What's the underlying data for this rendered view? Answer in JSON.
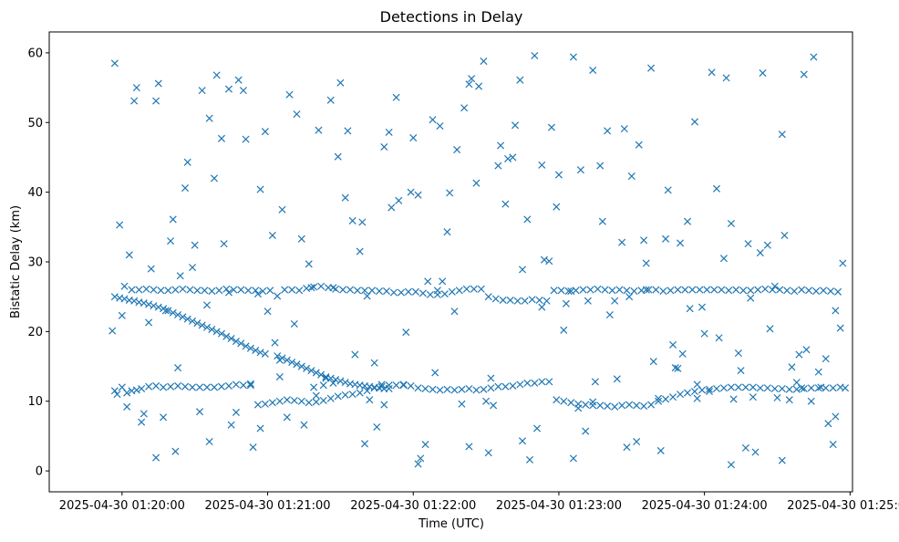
{
  "chart_data": {
    "type": "scatter",
    "title": "Detections in Delay",
    "xlabel": "Time (UTC)",
    "ylabel": "Bistatic Delay (km)",
    "x_unit": "seconds after 2025-04-30 01:19:30",
    "xlim": [
      0,
      331
    ],
    "ylim": [
      -3,
      63
    ],
    "x_ticks": [
      {
        "value": 30,
        "label": "2025-04-30 01:20:00"
      },
      {
        "value": 90,
        "label": "2025-04-30 01:21:00"
      },
      {
        "value": 150,
        "label": "2025-04-30 01:22:00"
      },
      {
        "value": 210,
        "label": "2025-04-30 01:23:00"
      },
      {
        "value": 270,
        "label": "2025-04-30 01:24:00"
      },
      {
        "value": 330,
        "label": "2025-04-30 01:25:00"
      }
    ],
    "y_ticks": [
      {
        "value": 0,
        "label": "0"
      },
      {
        "value": 10,
        "label": "10"
      },
      {
        "value": 20,
        "label": "20"
      },
      {
        "value": 30,
        "label": "30"
      },
      {
        "value": 40,
        "label": "40"
      },
      {
        "value": 50,
        "label": "50"
      },
      {
        "value": 60,
        "label": "60"
      }
    ],
    "marker": "x",
    "color": "#1f77b4",
    "series": [
      {
        "name": "detections",
        "x": [
          27,
          30,
          33,
          36,
          39,
          42,
          45,
          48,
          51,
          54,
          57,
          60,
          63,
          66,
          69,
          72,
          75,
          78,
          81,
          84,
          87,
          90,
          93,
          96,
          99,
          102,
          105,
          108,
          111,
          114,
          117,
          120,
          123,
          126,
          129,
          132,
          135,
          138,
          141,
          144,
          147,
          150,
          153,
          156,
          159,
          162,
          165,
          168,
          171,
          174,
          177,
          180,
          183,
          186,
          189,
          192,
          195,
          198,
          201,
          204,
          207,
          210,
          213,
          216,
          219,
          222,
          225,
          228,
          231,
          234,
          237,
          240,
          243,
          246,
          249,
          252,
          255,
          258,
          261,
          264,
          267,
          270,
          273,
          276,
          279,
          282,
          285,
          288,
          291,
          294,
          297,
          300,
          303,
          306,
          309,
          312,
          315,
          318,
          321,
          324,
          327,
          26,
          29,
          32,
          35,
          38,
          41,
          44,
          47,
          50,
          53,
          56,
          59,
          62,
          65,
          68,
          71,
          74,
          77,
          80,
          83,
          86,
          89,
          92,
          95,
          98,
          101,
          104,
          107,
          110,
          113,
          116,
          119,
          122,
          125,
          128,
          131,
          134,
          137,
          140,
          143,
          146,
          149,
          152,
          155,
          158,
          161,
          164,
          167,
          170,
          173,
          176,
          179,
          182,
          185,
          188,
          191,
          194,
          197,
          200,
          203,
          206,
          209,
          212,
          215,
          218,
          221,
          224,
          227,
          230,
          233,
          236,
          239,
          242,
          245,
          248,
          251,
          254,
          257,
          260,
          263,
          266,
          269,
          272,
          275,
          278,
          281,
          284,
          287,
          290,
          293,
          296,
          299,
          302,
          305,
          308,
          311,
          314,
          317,
          320,
          323,
          326,
          27,
          29,
          31,
          33,
          35,
          37,
          39,
          41,
          43,
          45,
          47,
          49,
          51,
          53,
          55,
          57,
          59,
          61,
          63,
          65,
          67,
          69,
          71,
          73,
          75,
          77,
          79,
          81,
          83,
          85,
          87,
          89,
          94,
          96,
          98,
          100,
          102,
          104,
          106,
          108,
          110,
          112,
          114,
          116,
          118,
          120,
          122,
          124,
          126,
          128,
          130,
          132,
          134,
          136,
          138,
          140,
          34,
          37,
          40,
          43,
          46,
          49,
          52,
          55,
          58,
          61,
          64,
          67,
          70,
          73,
          76,
          79,
          82,
          85,
          88,
          91,
          94,
          97,
          100,
          103,
          106,
          109,
          112,
          115,
          118,
          121,
          124,
          127,
          130,
          133,
          136,
          139,
          142,
          145,
          148,
          151,
          154,
          157,
          160,
          163,
          166,
          169,
          172,
          175,
          178,
          181,
          184,
          187,
          190,
          193,
          196,
          199,
          202,
          205,
          208,
          211,
          214,
          217,
          220,
          223,
          226,
          229,
          232,
          235,
          238,
          241,
          244,
          247,
          250,
          253,
          256,
          259,
          262,
          265,
          268,
          271,
          274,
          277,
          280,
          283,
          286,
          289,
          292,
          295,
          298,
          301,
          304,
          307,
          310,
          313,
          316,
          319,
          322,
          325,
          27,
          28,
          30,
          32,
          34,
          36,
          38,
          41,
          44,
          47,
          50,
          53,
          56,
          59,
          62,
          65,
          68,
          71,
          74,
          77,
          80,
          83,
          86,
          89,
          92,
          95,
          98,
          101,
          104,
          107,
          110,
          113,
          116,
          119,
          122,
          125,
          128,
          131,
          134,
          137,
          140,
          143,
          146,
          149,
          152,
          155,
          158,
          161,
          164,
          167,
          170,
          173,
          176,
          179,
          182,
          185,
          188,
          191,
          194,
          197,
          200,
          203,
          206,
          209,
          212,
          215,
          218,
          221,
          224,
          227,
          230,
          233,
          236,
          239,
          242,
          245,
          248,
          251,
          254,
          257,
          260,
          263,
          266,
          269,
          272,
          275,
          278,
          281,
          284,
          287,
          290,
          293,
          296,
          299,
          302,
          305,
          308,
          311,
          314,
          317,
          320,
          323,
          326,
          328,
          31,
          52,
          74,
          95,
          117,
          138,
          160,
          181,
          203,
          224,
          246,
          267,
          289,
          310,
          44,
          66,
          87,
          109,
          130,
          152,
          173,
          195,
          216,
          238,
          259,
          281,
          302,
          324
        ],
        "y": [
          58.5,
          22.3,
          31.0,
          55.0,
          8.2,
          29.0,
          55.6,
          23.0,
          36.1,
          28.0,
          44.3,
          32.4,
          54.6,
          50.6,
          56.8,
          32.6,
          6.6,
          56.1,
          47.6,
          3.4,
          40.4,
          22.9,
          18.4,
          37.5,
          54.0,
          51.2,
          6.6,
          26.3,
          48.9,
          13.3,
          12.6,
          55.7,
          48.8,
          16.7,
          35.7,
          10.2,
          6.3,
          46.5,
          37.8,
          38.8,
          19.9,
          47.8,
          1.8,
          27.2,
          14.1,
          27.2,
          39.9,
          46.1,
          52.1,
          56.3,
          55.2,
          10.0,
          9.4,
          46.7,
          44.8,
          49.6,
          28.9,
          1.6,
          6.1,
          30.3,
          49.3,
          42.5,
          24.0,
          59.4,
          43.2,
          24.4,
          12.8,
          35.8,
          22.4,
          13.2,
          49.1,
          42.3,
          46.8,
          29.8,
          15.7,
          2.9,
          40.3,
          14.8,
          16.8,
          23.3,
          10.4,
          19.7,
          57.2,
          19.1,
          56.4,
          10.3,
          14.4,
          32.6,
          2.7,
          57.1,
          20.4,
          10.5,
          33.8,
          14.9,
          16.7,
          17.4,
          59.4,
          12.0,
          6.8,
          23.0,
          29.8,
          20.1,
          35.3,
          9.2,
          53.1,
          7.0,
          21.3,
          53.1,
          7.7,
          33.0,
          14.8,
          40.6,
          29.2,
          8.5,
          23.8,
          42.0,
          47.7,
          54.8,
          8.4,
          54.6,
          12.5,
          25.4,
          48.7,
          33.8,
          15.9,
          7.7,
          21.1,
          33.3,
          29.7,
          10.8,
          12.3,
          53.2,
          45.1,
          39.2,
          35.9,
          31.5,
          25.1,
          15.5,
          12.4,
          48.6,
          53.6,
          12.4,
          40.0,
          39.6,
          3.8,
          50.4,
          49.5,
          34.3,
          22.9,
          9.6,
          55.5,
          41.3,
          58.8,
          13.3,
          43.8,
          38.3,
          45.0,
          56.1,
          36.1,
          59.6,
          43.9,
          30.1,
          37.9,
          20.2,
          25.8,
          9.0,
          5.7,
          57.5,
          43.8,
          48.8,
          24.4,
          32.8,
          25.0,
          4.2,
          33.1,
          57.8,
          10.4,
          33.3,
          18.1,
          32.7,
          35.8,
          50.1,
          23.5,
          11.4,
          40.5,
          30.5,
          35.5,
          16.9,
          3.3,
          10.6,
          31.3,
          32.4,
          26.5,
          48.3,
          10.2,
          12.7,
          56.9,
          10.0,
          14.2,
          16.1,
          3.8,
          20.5,
          25.0,
          24.8,
          24.7,
          24.5,
          24.4,
          24.2,
          24.1,
          23.9,
          23.7,
          23.5,
          23.3,
          23.0,
          22.7,
          22.4,
          22.1,
          21.8,
          21.5,
          21.2,
          20.9,
          20.6,
          20.3,
          20.0,
          19.7,
          19.3,
          19.0,
          18.6,
          18.3,
          17.9,
          17.6,
          17.3,
          17.0,
          16.8,
          16.5,
          16.2,
          15.9,
          15.6,
          15.3,
          15.0,
          14.7,
          14.4,
          14.1,
          13.8,
          13.5,
          13.3,
          13.1,
          12.9,
          12.7,
          12.5,
          12.4,
          12.3,
          12.2,
          12.1,
          12.0,
          11.9,
          11.8,
          11.8,
          26.0,
          26.0,
          26.1,
          26.0,
          25.9,
          25.9,
          26.0,
          26.1,
          26.0,
          25.9,
          25.9,
          25.8,
          25.9,
          26.1,
          26.0,
          26.0,
          25.9,
          25.9,
          25.8,
          25.9,
          25.1,
          26.0,
          26.0,
          25.9,
          26.2,
          26.4,
          26.5,
          26.3,
          26.1,
          26.0,
          26.0,
          25.9,
          25.9,
          25.9,
          25.8,
          25.8,
          25.6,
          25.6,
          25.7,
          25.7,
          25.5,
          25.3,
          25.3,
          25.4,
          25.7,
          25.9,
          26.1,
          26.1,
          26.1,
          25.0,
          24.7,
          24.5,
          24.5,
          24.4,
          24.4,
          24.6,
          24.5,
          24.4,
          25.9,
          25.9,
          25.8,
          25.9,
          26.0,
          26.0,
          26.1,
          26.0,
          25.9,
          26.0,
          25.9,
          25.8,
          25.9,
          26.0,
          26.0,
          25.8,
          25.9,
          26.0,
          26.0,
          26.0,
          26.0,
          26.0,
          26.0,
          26.0,
          25.9,
          26.0,
          25.9,
          25.9,
          26.0,
          26.1,
          26.0,
          26.0,
          25.9,
          25.8,
          26.0,
          25.9,
          25.8,
          25.9,
          25.8,
          25.7,
          11.5,
          11.0,
          12.0,
          11.2,
          11.5,
          11.6,
          11.8,
          12.1,
          12.2,
          12.0,
          12.1,
          12.2,
          12.1,
          12.0,
          12.0,
          12.0,
          12.0,
          12.1,
          12.2,
          12.4,
          12.3,
          12.3,
          9.5,
          9.6,
          9.8,
          10.0,
          10.2,
          10.1,
          10.0,
          9.8,
          9.9,
          10.1,
          10.4,
          10.7,
          10.9,
          11.0,
          11.2,
          11.5,
          11.9,
          12.1,
          12.3,
          12.3,
          12.3,
          12.2,
          11.9,
          11.8,
          11.7,
          11.6,
          11.7,
          11.6,
          11.7,
          11.8,
          11.6,
          11.7,
          11.9,
          12.1,
          12.1,
          12.2,
          12.4,
          12.6,
          12.6,
          12.8,
          12.8,
          10.2,
          10.0,
          9.8,
          9.6,
          9.5,
          9.4,
          9.4,
          9.3,
          9.2,
          9.4,
          9.5,
          9.4,
          9.3,
          9.5,
          10.0,
          10.3,
          10.6,
          11.0,
          11.2,
          11.4,
          11.6,
          11.7,
          11.8,
          11.9,
          12.0,
          12.0,
          12.0,
          12.0,
          11.9,
          11.9,
          11.8,
          11.8,
          11.7,
          11.7,
          11.8,
          11.9,
          11.9,
          11.9,
          11.9,
          12.0,
          11.9,
          26.5,
          2.8,
          25.6,
          13.5,
          26.3,
          9.5,
          25.9,
          2.6,
          23.5,
          9.9,
          26.0,
          12.4,
          24.8,
          11.9,
          1.9,
          4.2,
          6.1,
          12.0,
          3.9,
          1.0,
          3.5,
          4.3,
          1.8,
          3.4,
          14.7,
          0.9,
          1.5,
          7.8
        ]
      }
    ]
  }
}
